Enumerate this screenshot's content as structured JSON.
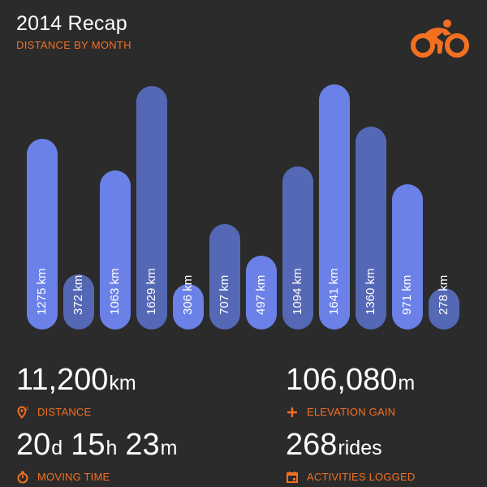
{
  "header": {
    "title": "2014 Recap",
    "subtitle": "DISTANCE BY MONTH",
    "logo_icon": "cyclist-icon"
  },
  "colors": {
    "background": "#2b2b2b",
    "accent": "#f37021",
    "bar_light": "#6b81e8",
    "bar_dark": "#5568b5"
  },
  "chart_data": {
    "type": "bar",
    "title": "DISTANCE BY MONTH",
    "values": [
      1275,
      372,
      1063,
      1629,
      306,
      707,
      497,
      1094,
      1641,
      1360,
      971,
      278
    ],
    "value_labels": [
      "1275 km",
      "372 km",
      "1063 km",
      "1629 km",
      "306 km",
      "707 km",
      "497 km",
      "1094 km",
      "1641 km",
      "1360 km",
      "971 km",
      "278 km"
    ],
    "unit": "km",
    "ylim": [
      0,
      1641
    ],
    "grid": false,
    "legend": "none"
  },
  "stats": {
    "distance": {
      "value": "11,200",
      "unit": "km",
      "label": "DISTANCE",
      "icon": "map-pin-icon"
    },
    "elevation": {
      "value": "106,080",
      "unit": "m",
      "label": "ELEVATION GAIN",
      "icon": "plus-icon"
    },
    "moving_time": {
      "days": "20",
      "days_unit": "d",
      "hours": "15",
      "hours_unit": "h",
      "minutes": "23",
      "minutes_unit": "m",
      "label": "MOVING TIME",
      "icon": "stopwatch-icon"
    },
    "activities": {
      "value": "268",
      "unit": "rides",
      "label": "ACTIVITIES LOGGED",
      "icon": "calendar-icon"
    }
  }
}
